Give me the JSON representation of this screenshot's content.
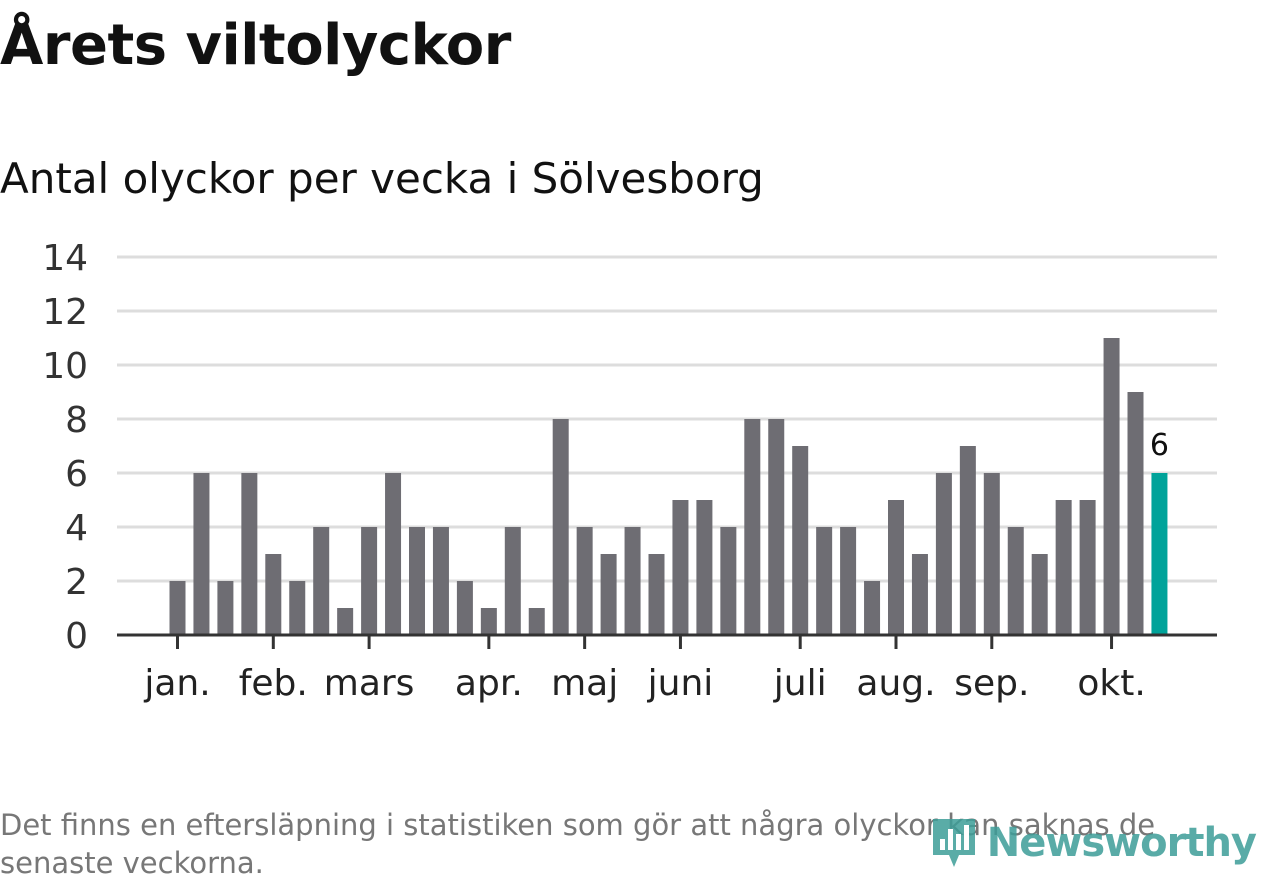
{
  "header": {
    "title": "Årets viltolyckor",
    "subtitle": "Antal olyckor per vecka i Sölvesborg"
  },
  "chart_data": {
    "type": "bar",
    "title": "Årets viltolyckor",
    "subtitle": "Antal olyckor per vecka i Sölvesborg",
    "xlabel": "",
    "ylabel": "",
    "ylim": [
      0,
      14
    ],
    "y_ticks": [
      0,
      2,
      4,
      6,
      8,
      10,
      12,
      14
    ],
    "grid": true,
    "values": [
      2,
      6,
      2,
      6,
      3,
      2,
      4,
      1,
      4,
      6,
      4,
      4,
      2,
      1,
      4,
      1,
      8,
      4,
      3,
      4,
      3,
      5,
      5,
      4,
      8,
      8,
      7,
      4,
      4,
      2,
      5,
      3,
      6,
      7,
      6,
      4,
      3,
      5,
      5,
      11,
      9,
      6
    ],
    "month_labels": [
      {
        "label": "jan.",
        "week_index": 0
      },
      {
        "label": "feb.",
        "week_index": 4
      },
      {
        "label": "mars",
        "week_index": 8
      },
      {
        "label": "apr.",
        "week_index": 13
      },
      {
        "label": "maj",
        "week_index": 17
      },
      {
        "label": "juni",
        "week_index": 21
      },
      {
        "label": "juli",
        "week_index": 26
      },
      {
        "label": "aug.",
        "week_index": 30
      },
      {
        "label": "sep.",
        "week_index": 34
      },
      {
        "label": "okt.",
        "week_index": 39
      }
    ],
    "highlight": {
      "week_index": 41,
      "label": "6"
    },
    "colors": {
      "bar": "#6e6d73",
      "highlight": "#00a39a",
      "grid": "#dddddd",
      "axis": "#333333"
    }
  },
  "footer": {
    "note": "Det finns en eftersläpning i statistiken som gör att några olyckor kan saknas de senaste veckorna.",
    "brand": "Newsworthy",
    "brand_icon": "newsworthy-logo-icon"
  }
}
